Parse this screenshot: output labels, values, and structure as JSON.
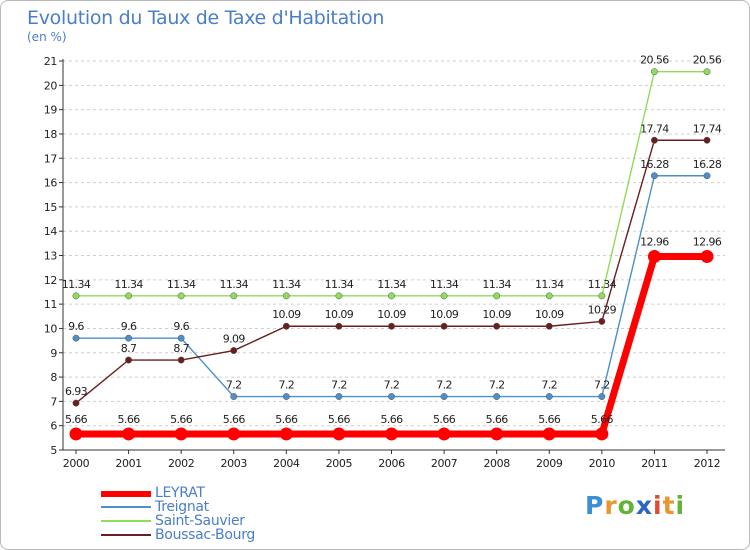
{
  "header": {
    "title": "Evolution du Taux de Taxe d'Habitation",
    "subtitle": "(en %)"
  },
  "chart_data": {
    "type": "line",
    "title": "Evolution du Taux de Taxe d'Habitation",
    "ylabel": "(en %)",
    "xlabel": "",
    "x": [
      "2000",
      "2001",
      "2002",
      "2003",
      "2004",
      "2005",
      "2006",
      "2007",
      "2008",
      "2009",
      "2010",
      "2011",
      "2012"
    ],
    "ylim": [
      5,
      21
    ],
    "yticks": [
      "5",
      "6",
      "7",
      "8",
      "9",
      "10",
      "11",
      "12",
      "13",
      "14",
      "15",
      "16",
      "17",
      "18",
      "19",
      "20",
      "21"
    ],
    "grid": "horizontal-dashed",
    "legend_position": "bottom-left",
    "series": [
      {
        "name": "LEYRAT",
        "color": "#ff0000",
        "values": [
          5.66,
          5.66,
          5.66,
          5.66,
          5.66,
          5.66,
          5.66,
          5.66,
          5.66,
          5.66,
          5.66,
          12.96,
          12.96
        ],
        "labels": [
          "5.66",
          "5.66",
          "5.66",
          "5.66",
          "5.66",
          "5.66",
          "5.66",
          "5.66",
          "5.66",
          "5.66",
          "5.66",
          "12.96",
          "12.96"
        ]
      },
      {
        "name": "Treignat",
        "color": "#4d8fc9",
        "values": [
          9.6,
          9.6,
          9.6,
          7.2,
          7.2,
          7.2,
          7.2,
          7.2,
          7.2,
          7.2,
          7.2,
          16.28,
          16.28
        ],
        "labels": [
          "9.6",
          "9.6",
          "9.6",
          "7.2",
          "7.2",
          "7.2",
          "7.2",
          "7.2",
          "7.2",
          "7.2",
          "7.2",
          "16.28",
          "16.28"
        ]
      },
      {
        "name": "Saint-Sauvier",
        "color": "#8fdc5a",
        "values": [
          11.34,
          11.34,
          11.34,
          11.34,
          11.34,
          11.34,
          11.34,
          11.34,
          11.34,
          11.34,
          11.34,
          20.56,
          20.56
        ],
        "labels": [
          "11.34",
          "11.34",
          "11.34",
          "11.34",
          "11.34",
          "11.34",
          "11.34",
          "11.34",
          "11.34",
          "11.34",
          "11.34",
          "20.56",
          "20.56"
        ]
      },
      {
        "name": "Boussac-Bourg",
        "color": "#6b1e1e",
        "values": [
          6.93,
          8.7,
          8.7,
          9.09,
          10.09,
          10.09,
          10.09,
          10.09,
          10.09,
          10.09,
          10.29,
          17.74,
          17.74
        ],
        "labels": [
          "6.93",
          "8.7",
          "8.7",
          "9.09",
          "10.09",
          "10.09",
          "10.09",
          "10.09",
          "10.09",
          "10.09",
          "10.29",
          "17.74",
          "17.74"
        ]
      }
    ]
  },
  "logo": {
    "letters": [
      "P",
      "r",
      "o",
      "x",
      "i",
      "t",
      "i"
    ],
    "colors": [
      "#3a8fd6",
      "#e8962e",
      "#63b33a",
      "#2c66c4",
      "#e24b33",
      "#e8962e",
      "#63b33a"
    ]
  }
}
